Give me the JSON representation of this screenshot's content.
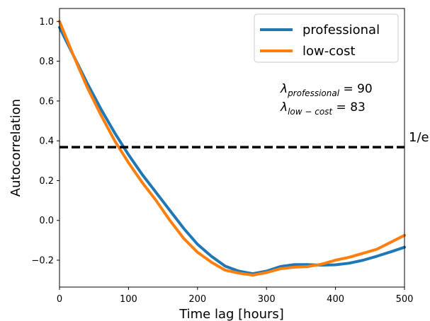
{
  "chart_data": {
    "type": "line",
    "xlabel": "Time lag [hours]",
    "ylabel": "Autocorrelation",
    "xlim": [
      0,
      500
    ],
    "ylim": [
      -0.335,
      1.065
    ],
    "xticks": [
      0,
      100,
      200,
      300,
      400,
      500
    ],
    "yticks": [
      -0.2,
      0.0,
      0.2,
      0.4,
      0.6,
      0.8,
      1.0
    ],
    "xtick_labels": [
      "0",
      "100",
      "200",
      "300",
      "400",
      "500"
    ],
    "ytick_labels": [
      "−0.2",
      "0.0",
      "0.2",
      "0.4",
      "0.6",
      "0.8",
      "1.0"
    ],
    "grid": false,
    "legend_position": "top-right",
    "series": [
      {
        "name": "professional",
        "color": "#1f77b4",
        "x": [
          0,
          20,
          40,
          60,
          80,
          100,
          120,
          140,
          160,
          180,
          200,
          220,
          240,
          260,
          280,
          300,
          320,
          340,
          360,
          380,
          400,
          420,
          440,
          460,
          480,
          500
        ],
        "y": [
          0.97,
          0.83,
          0.69,
          0.56,
          0.44,
          0.33,
          0.23,
          0.14,
          0.05,
          -0.04,
          -0.12,
          -0.18,
          -0.23,
          -0.255,
          -0.268,
          -0.255,
          -0.232,
          -0.222,
          -0.222,
          -0.225,
          -0.223,
          -0.215,
          -0.2,
          -0.18,
          -0.158,
          -0.135
        ]
      },
      {
        "name": "low-cost",
        "color": "#ff7f0e",
        "x": [
          0,
          20,
          40,
          60,
          80,
          100,
          120,
          140,
          160,
          180,
          200,
          220,
          240,
          260,
          280,
          300,
          320,
          340,
          360,
          380,
          400,
          420,
          440,
          460,
          480,
          500
        ],
        "y": [
          1.0,
          0.83,
          0.67,
          0.53,
          0.4,
          0.29,
          0.19,
          0.1,
          0.0,
          -0.09,
          -0.16,
          -0.21,
          -0.25,
          -0.265,
          -0.275,
          -0.262,
          -0.243,
          -0.235,
          -0.232,
          -0.22,
          -0.2,
          -0.185,
          -0.165,
          -0.145,
          -0.11,
          -0.075
        ]
      }
    ],
    "reference_lines": [
      {
        "orientation": "horizontal",
        "y": 0.3679,
        "label": "1/e",
        "style": "dashed",
        "color": "#000000"
      }
    ],
    "annotations": [
      {
        "lambda_symbol": "λ",
        "subscript": "professional",
        "equation": " = 90"
      },
      {
        "lambda_symbol": "λ",
        "subscript": "low − cost",
        "equation": " = 83"
      }
    ]
  }
}
